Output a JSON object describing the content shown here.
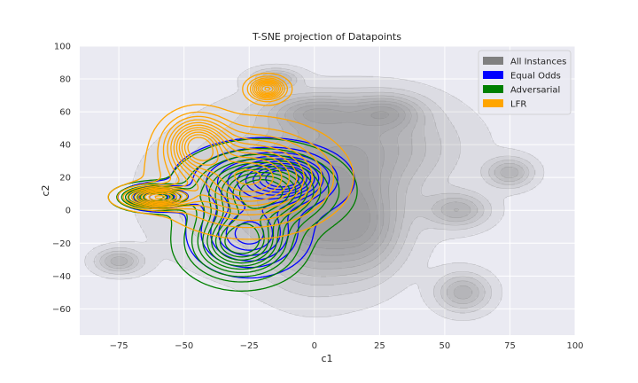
{
  "chart_data": {
    "type": "kde_contour",
    "title": "T-SNE projection of Datapoints",
    "xlabel": "c1",
    "ylabel": "c2",
    "xlim": [
      -90,
      100
    ],
    "ylim": [
      -76,
      100
    ],
    "xticks": [
      -75,
      -50,
      -25,
      0,
      25,
      50,
      75,
      100
    ],
    "yticks": [
      -60,
      -40,
      -20,
      0,
      20,
      40,
      60,
      80,
      100
    ],
    "xtick_labels": [
      "−75",
      "−50",
      "−25",
      "0",
      "25",
      "50",
      "75",
      "100"
    ],
    "ytick_labels": [
      "−60",
      "−40",
      "−20",
      "0",
      "20",
      "40",
      "60",
      "80",
      "100"
    ],
    "background_color": "#eaeaf2",
    "grid": true,
    "legend_position": "top-right",
    "series": [
      {
        "name": "All Instances",
        "color": "#808080",
        "style": "filled",
        "levels": 9,
        "clusters": [
          {
            "x": -10,
            "y": 10,
            "sx": 28,
            "sy": 28
          },
          {
            "x": 0,
            "y": -10,
            "sx": 12,
            "sy": 24
          },
          {
            "x": 20,
            "y": 40,
            "sx": 22,
            "sy": 18
          },
          {
            "x": 0,
            "y": 60,
            "sx": 12,
            "sy": 7
          },
          {
            "x": 28,
            "y": 60,
            "sx": 9,
            "sy": 7
          },
          {
            "x": 57,
            "y": -50,
            "sx": 7,
            "sy": 8
          },
          {
            "x": -75,
            "y": -31,
            "sx": 6,
            "sy": 5
          },
          {
            "x": 75,
            "y": 23,
            "sx": 6,
            "sy": 6
          },
          {
            "x": 55,
            "y": 0,
            "sx": 8,
            "sy": 7
          },
          {
            "x": -15,
            "y": 80,
            "sx": 6,
            "sy": 4
          },
          {
            "x": 20,
            "y": -10,
            "sx": 10,
            "sy": 20
          }
        ]
      },
      {
        "name": "Equal Odds",
        "color": "#0000ff",
        "style": "line",
        "levels": 10,
        "clusters": [
          {
            "x": -20,
            "y": 18,
            "sx": 16,
            "sy": 12
          },
          {
            "x": -10,
            "y": 20,
            "sx": 8,
            "sy": 7
          },
          {
            "x": -60,
            "y": 8,
            "sx": 7,
            "sy": 4
          },
          {
            "x": -25,
            "y": -15,
            "sx": 11,
            "sy": 12
          }
        ]
      },
      {
        "name": "Adversarial",
        "color": "#008000",
        "style": "line",
        "levels": 10,
        "clusters": [
          {
            "x": -20,
            "y": 12,
            "sx": 15,
            "sy": 13
          },
          {
            "x": -62,
            "y": 8,
            "sx": 7,
            "sy": 4
          },
          {
            "x": -28,
            "y": -20,
            "sx": 11,
            "sy": 12
          }
        ]
      },
      {
        "name": "LFR",
        "color": "#ffa500",
        "style": "line",
        "levels": 11,
        "clusters": [
          {
            "x": -25,
            "y": 20,
            "sx": 17,
            "sy": 16
          },
          {
            "x": -45,
            "y": 40,
            "sx": 7,
            "sy": 10
          },
          {
            "x": -60,
            "y": 8,
            "sx": 8,
            "sy": 4
          },
          {
            "x": -18,
            "y": 74,
            "sx": 4,
            "sy": 4
          }
        ]
      }
    ]
  }
}
